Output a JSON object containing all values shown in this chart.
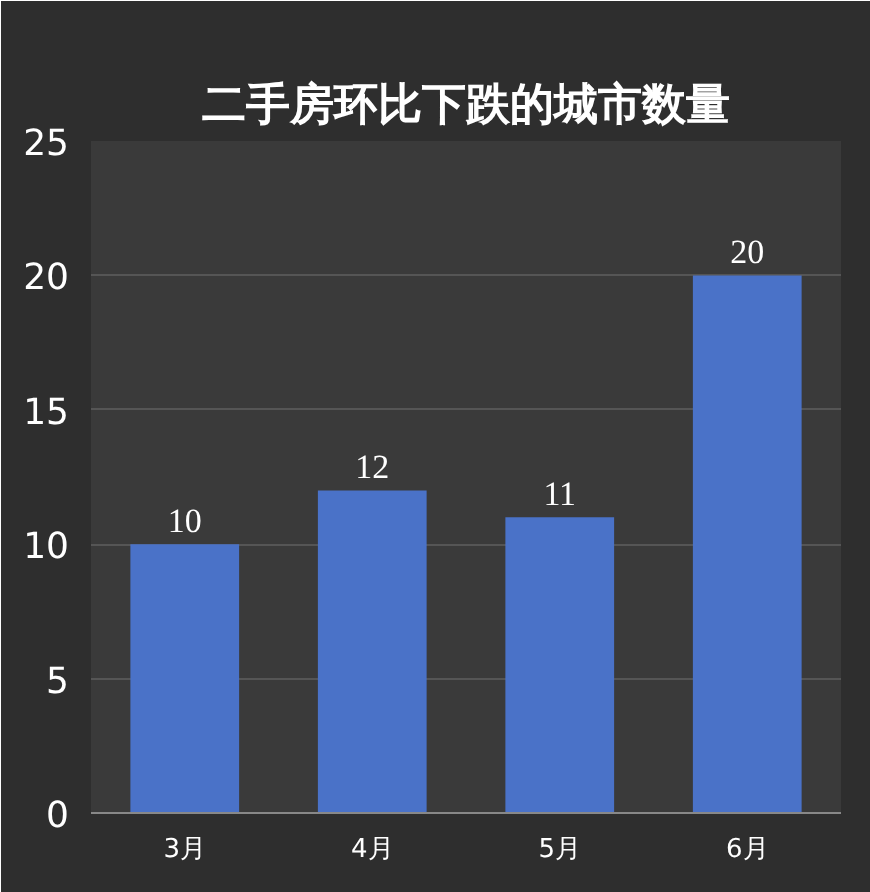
{
  "chart_data": {
    "type": "bar",
    "title": "二手房环比下跌的城市数量",
    "categories": [
      "3月",
      "4月",
      "5月",
      "6月"
    ],
    "values": [
      10,
      12,
      11,
      20
    ],
    "color": "#4a72c8",
    "ylim": [
      0,
      25
    ],
    "yticks": [
      0,
      5,
      10,
      15,
      20,
      25
    ],
    "grid": "y",
    "data_labels": true
  }
}
